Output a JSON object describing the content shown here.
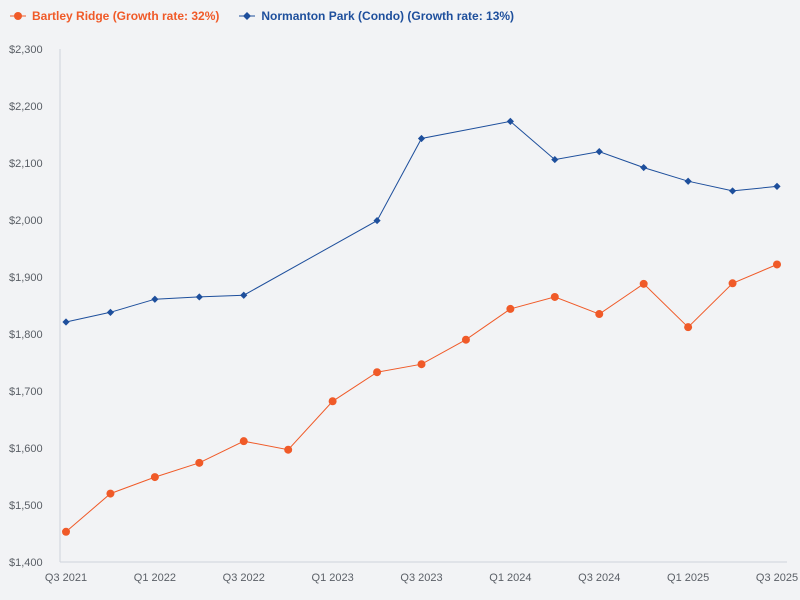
{
  "chart_data": {
    "type": "line",
    "title": "",
    "xlabel": "",
    "ylabel": "",
    "x": [
      "Q3 2021",
      "Q4 2021",
      "Q1 2022",
      "Q2 2022",
      "Q3 2022",
      "Q4 2022",
      "Q1 2023",
      "Q2 2023",
      "Q3 2023",
      "Q4 2023",
      "Q1 2024",
      "Q2 2024",
      "Q3 2024",
      "Q4 2024",
      "Q1 2025",
      "Q2 2025",
      "Q3 2025"
    ],
    "x_tick_labels": [
      "Q3 2021",
      "Q1 2022",
      "Q3 2022",
      "Q1 2023",
      "Q3 2023",
      "Q1 2024",
      "Q3 2024",
      "Q1 2025",
      "Q3 2025"
    ],
    "y_tick_labels": [
      "$1,400",
      "$1,500",
      "$1,600",
      "$1,700",
      "$1,800",
      "$1,900",
      "$2,000",
      "$2,100",
      "$2,200",
      "$2,300"
    ],
    "ylim": [
      1400,
      2300
    ],
    "grid": false,
    "legend_position": "top-left",
    "series": [
      {
        "name": "Bartley Ridge (Growth rate: 32%)",
        "color": "#f05a28",
        "marker": "circle",
        "points": [
          {
            "x": "Q3 2021",
            "y": 1453
          },
          {
            "x": "Q4 2021",
            "y": 1520
          },
          {
            "x": "Q1 2022",
            "y": 1549
          },
          {
            "x": "Q2 2022",
            "y": 1574
          },
          {
            "x": "Q3 2022",
            "y": 1612
          },
          {
            "x": "Q4 2022",
            "y": 1597
          },
          {
            "x": "Q1 2023",
            "y": 1682
          },
          {
            "x": "Q2 2023",
            "y": 1733
          },
          {
            "x": "Q3 2023",
            "y": 1747
          },
          {
            "x": "Q1 2024",
            "y": 1844
          },
          {
            "x": "Q2 2024",
            "y": 1865
          },
          {
            "x": "Q3 2024",
            "y": 1835
          },
          {
            "x": "Q4 2024",
            "y": 1888
          },
          {
            "x": "Q1 2025",
            "y": 1812
          },
          {
            "x": "Q2 2025",
            "y": 1889
          },
          {
            "x": "Q3 2025",
            "y": 1922
          },
          {
            "x": "Q4 2023",
            "y": 1790
          }
        ]
      },
      {
        "name": "Normanton Park (Condo) (Growth rate: 13%)",
        "color": "#1e4f9c",
        "marker": "diamond",
        "points": [
          {
            "x": "Q3 2021",
            "y": 1821
          },
          {
            "x": "Q4 2021",
            "y": 1838
          },
          {
            "x": "Q1 2022",
            "y": 1861
          },
          {
            "x": "Q2 2022",
            "y": 1865
          },
          {
            "x": "Q3 2022",
            "y": 1868
          },
          {
            "x": "Q2 2023",
            "y": 1999
          },
          {
            "x": "Q3 2023",
            "y": 2143
          },
          {
            "x": "Q1 2024",
            "y": 2173
          },
          {
            "x": "Q2 2024",
            "y": 2106
          },
          {
            "x": "Q3 2024",
            "y": 2120
          },
          {
            "x": "Q4 2024",
            "y": 2092
          },
          {
            "x": "Q1 2025",
            "y": 2068
          },
          {
            "x": "Q2 2025",
            "y": 2051
          },
          {
            "x": "Q3 2025",
            "y": 2059
          }
        ]
      }
    ]
  }
}
